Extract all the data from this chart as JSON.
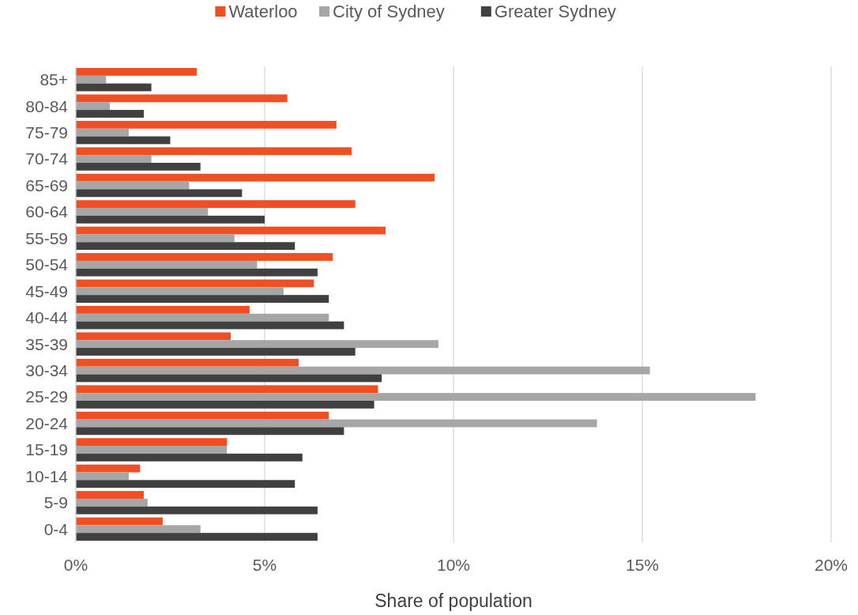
{
  "chart_data": {
    "type": "bar",
    "orientation": "horizontal",
    "xlabel": "Share of population",
    "categories": [
      "85+",
      "80-84",
      "75-79",
      "70-74",
      "65-69",
      "60-64",
      "55-59",
      "50-54",
      "45-49",
      "40-44",
      "35-39",
      "30-34",
      "25-29",
      "20-24",
      "15-19",
      "10-14",
      "5-9",
      "0-4"
    ],
    "series": [
      {
        "name": "Waterloo",
        "color": "#f04e23",
        "values": [
          3.2,
          5.6,
          6.9,
          7.3,
          9.5,
          7.4,
          8.2,
          6.8,
          6.3,
          4.6,
          4.1,
          5.9,
          8.0,
          6.7,
          4.0,
          1.7,
          1.8,
          2.3
        ]
      },
      {
        "name": "City of Sydney",
        "color": "#a6a6a6",
        "values": [
          0.8,
          0.9,
          1.4,
          2.0,
          3.0,
          3.5,
          4.2,
          4.8,
          5.5,
          6.7,
          9.6,
          15.2,
          18.0,
          13.8,
          4.0,
          1.4,
          1.9,
          3.3
        ]
      },
      {
        "name": "Greater Sydney",
        "color": "#404040",
        "values": [
          2.0,
          1.8,
          2.5,
          3.3,
          4.4,
          5.0,
          5.8,
          6.4,
          6.7,
          7.1,
          7.4,
          8.1,
          7.9,
          7.1,
          6.0,
          5.8,
          6.4,
          6.4
        ]
      }
    ],
    "xlim": [
      0,
      20
    ],
    "xticks": [
      {
        "value": 0,
        "label": "0%"
      },
      {
        "value": 5,
        "label": "5%"
      },
      {
        "value": 10,
        "label": "10%"
      },
      {
        "value": 15,
        "label": "15%"
      },
      {
        "value": 20,
        "label": "20%"
      }
    ],
    "grid": "x",
    "legend": "top"
  }
}
